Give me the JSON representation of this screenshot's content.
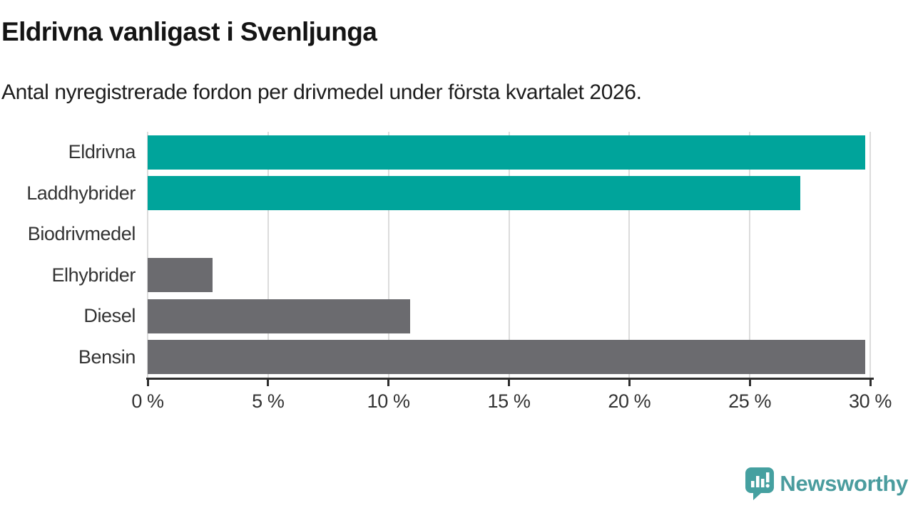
{
  "header": {
    "title": "Eldrivna vanligast i Svenljunga",
    "subtitle": "Antal nyregistrerade fordon per drivmedel under första kvartalet 2026."
  },
  "chart_data": {
    "type": "bar",
    "orientation": "horizontal",
    "title": "Eldrivna vanligast i Svenljunga",
    "subtitle": "Antal nyregistrerade fordon per drivmedel under första kvartalet 2026.",
    "categories": [
      "Eldrivna",
      "Laddhybrider",
      "Biodrivmedel",
      "Elhybrider",
      "Diesel",
      "Bensin"
    ],
    "values": [
      29.8,
      27.1,
      0,
      2.7,
      10.9,
      29.8
    ],
    "unit": "%",
    "xlim": [
      0,
      30
    ],
    "x_tick_values": [
      0,
      5,
      10,
      15,
      20,
      25,
      30
    ],
    "x_tick_labels": [
      "0 %",
      "5 %",
      "10 %",
      "15 %",
      "20 %",
      "25 %",
      "30 %"
    ],
    "bar_colors": [
      "#00a49b",
      "#00a49b",
      "#00a49b",
      "#6b6b6f",
      "#6b6b6f",
      "#6b6b6f"
    ],
    "grid": true,
    "legend": "none"
  },
  "colors": {
    "teal_bar": "#00a49b",
    "gray_bar": "#6b6b6f",
    "gridline": "#dcdcdc",
    "axis": "#2e2e2e",
    "logo_teal": "#45a0a0"
  },
  "footer": {
    "brand": "Newsworthy"
  }
}
